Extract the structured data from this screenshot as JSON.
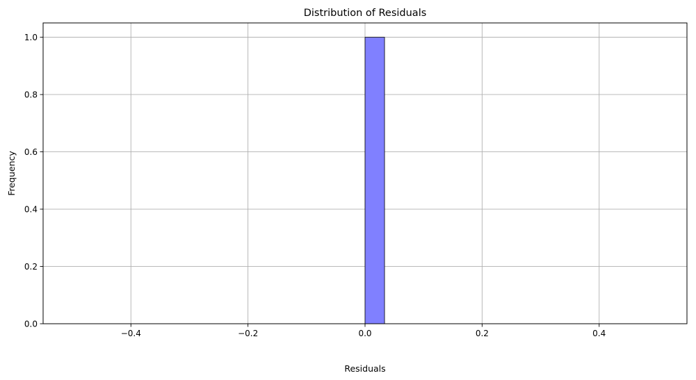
{
  "chart_data": {
    "type": "bar",
    "title": "Distribution of Residuals",
    "xlabel": "Residuals",
    "ylabel": "Frequency",
    "xlim": [
      -0.55,
      0.55
    ],
    "ylim": [
      0,
      1.05
    ],
    "xticks": [
      -0.4,
      -0.2,
      0.0,
      0.2,
      0.4
    ],
    "xtick_labels": [
      "−0.4",
      "−0.2",
      "0.0",
      "0.2",
      "0.4"
    ],
    "yticks": [
      0.0,
      0.2,
      0.4,
      0.6,
      0.8,
      1.0
    ],
    "ytick_labels": [
      "0.0",
      "0.2",
      "0.4",
      "0.6",
      "0.8",
      "1.0"
    ],
    "grid": true,
    "bins": {
      "start": -0.5,
      "end": 0.5,
      "count": 30,
      "counts": [
        0,
        0,
        0,
        0,
        0,
        0,
        0,
        0,
        0,
        0,
        0,
        0,
        0,
        0,
        0,
        1,
        0,
        0,
        0,
        0,
        0,
        0,
        0,
        0,
        0,
        0,
        0,
        0,
        0,
        0
      ]
    },
    "colors": {
      "bar_fill": "#8080ff",
      "bar_edge": "#000000"
    }
  }
}
